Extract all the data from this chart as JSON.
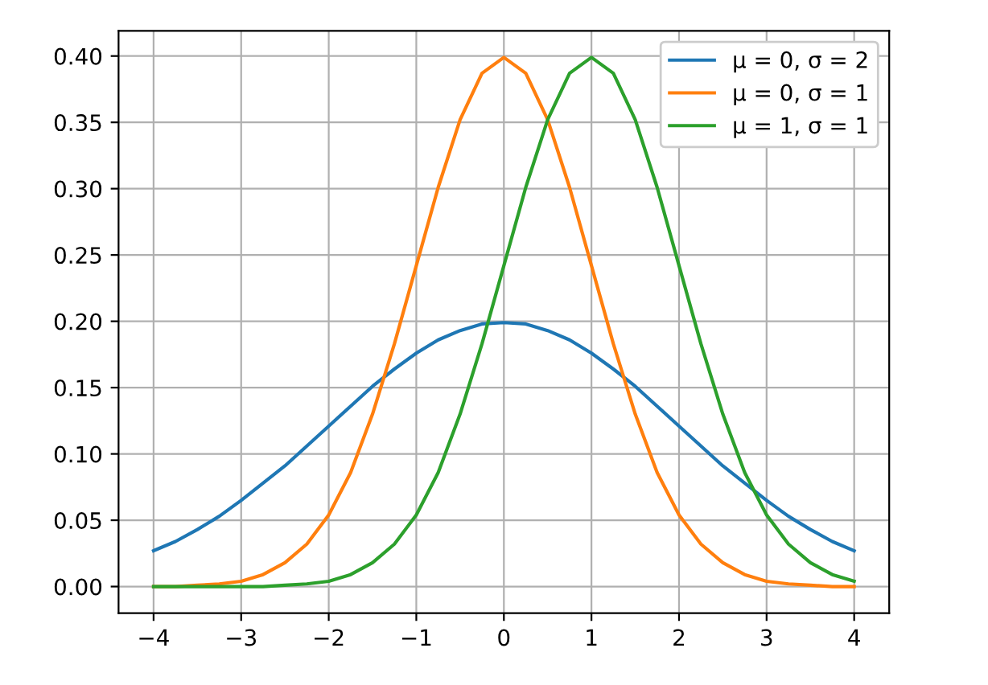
{
  "chart_data": {
    "type": "line",
    "x": [
      -4,
      -3.75,
      -3.5,
      -3.25,
      -3,
      -2.75,
      -2.5,
      -2.25,
      -2,
      -1.75,
      -1.5,
      -1.25,
      -1,
      -0.75,
      -0.5,
      -0.25,
      0,
      0.25,
      0.5,
      0.75,
      1,
      1.25,
      1.5,
      1.75,
      2,
      2.25,
      2.5,
      2.75,
      3,
      3.25,
      3.5,
      3.75,
      4
    ],
    "series": [
      {
        "name": "μ = 0, σ = 2",
        "color": "#1f77b4",
        "values": [
          0.027,
          0.034,
          0.043,
          0.053,
          0.065,
          0.078,
          0.091,
          0.106,
          0.121,
          0.136,
          0.151,
          0.164,
          0.176,
          0.186,
          0.193,
          0.198,
          0.199,
          0.198,
          0.193,
          0.186,
          0.176,
          0.164,
          0.151,
          0.136,
          0.121,
          0.106,
          0.091,
          0.078,
          0.065,
          0.053,
          0.043,
          0.034,
          0.027
        ]
      },
      {
        "name": "μ = 0, σ = 1",
        "color": "#ff7f0e",
        "values": [
          0.0,
          0.0,
          0.001,
          0.002,
          0.004,
          0.009,
          0.018,
          0.032,
          0.054,
          0.086,
          0.13,
          0.183,
          0.242,
          0.301,
          0.352,
          0.387,
          0.399,
          0.387,
          0.352,
          0.301,
          0.242,
          0.183,
          0.13,
          0.086,
          0.054,
          0.032,
          0.018,
          0.009,
          0.004,
          0.002,
          0.001,
          0.0,
          0.0
        ]
      },
      {
        "name": "μ = 1, σ = 1",
        "color": "#2ca02c",
        "values": [
          0.0,
          0.0,
          0.0,
          0.0,
          0.0,
          0.0,
          0.001,
          0.002,
          0.004,
          0.009,
          0.018,
          0.032,
          0.054,
          0.086,
          0.13,
          0.183,
          0.242,
          0.301,
          0.352,
          0.387,
          0.399,
          0.387,
          0.352,
          0.301,
          0.242,
          0.183,
          0.13,
          0.086,
          0.054,
          0.032,
          0.018,
          0.009,
          0.004
        ]
      }
    ],
    "xlim": [
      -4.4,
      4.4
    ],
    "ylim": [
      -0.02,
      0.419
    ],
    "xticks": [
      {
        "value": -4,
        "label": "−4"
      },
      {
        "value": -3,
        "label": "−3"
      },
      {
        "value": -2,
        "label": "−2"
      },
      {
        "value": -1,
        "label": "−1"
      },
      0,
      1,
      2,
      3,
      4
    ],
    "yticks": [
      {
        "value": 0,
        "label": "0.00"
      },
      {
        "value": 0.05,
        "label": "0.05"
      },
      {
        "value": 0.1,
        "label": "0.10"
      },
      {
        "value": 0.15,
        "label": "0.15"
      },
      {
        "value": 0.2,
        "label": "0.20"
      },
      {
        "value": 0.25,
        "label": "0.25"
      },
      {
        "value": 0.3,
        "label": "0.30"
      },
      {
        "value": 0.35,
        "label": "0.35"
      },
      {
        "value": 0.4,
        "label": "0.40"
      }
    ],
    "grid": true,
    "legend": "top right",
    "marker": "none",
    "line_style": "solid"
  }
}
